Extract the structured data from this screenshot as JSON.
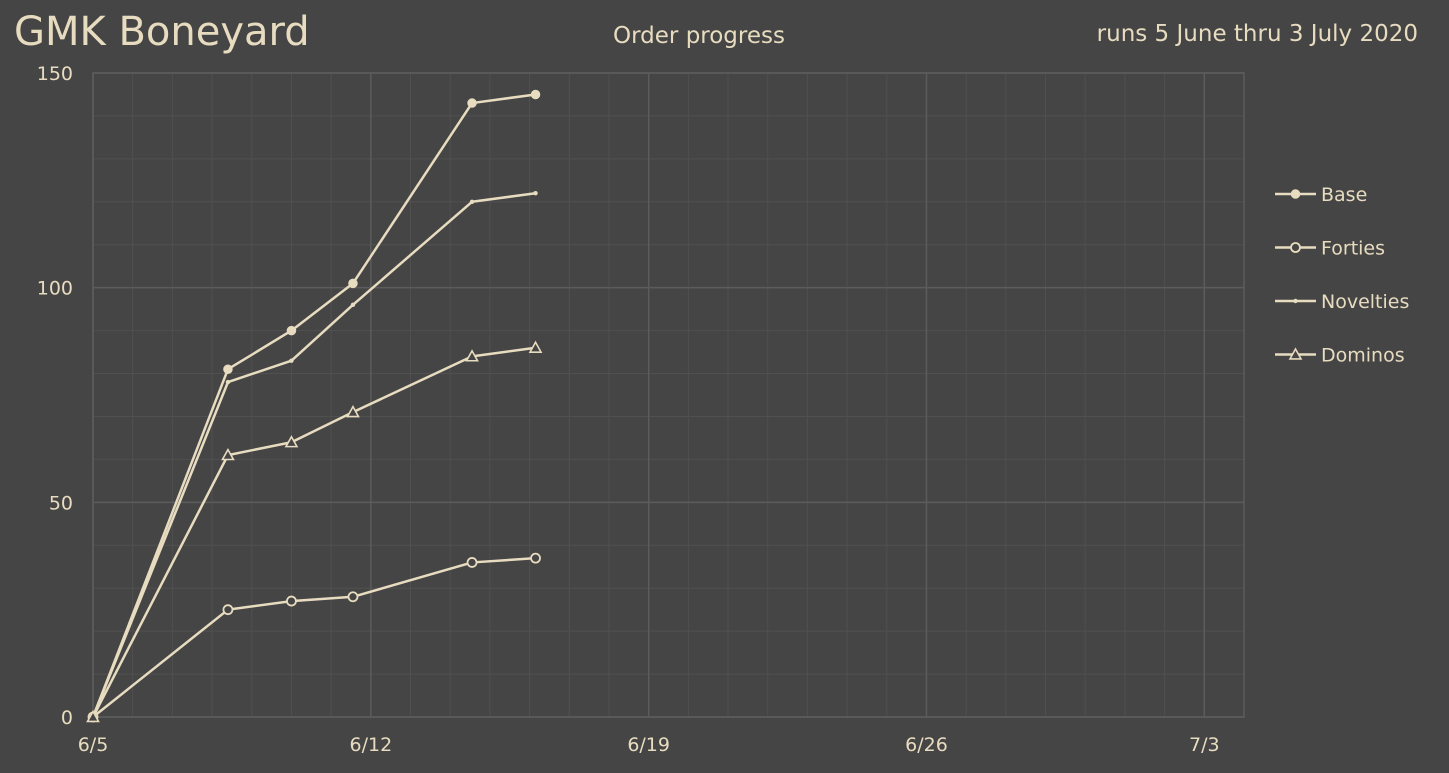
{
  "header": {
    "title": "GMK Boneyard",
    "subtitle": "Order progress",
    "date_range": "runs 5 June thru 3 July 2020"
  },
  "colors": {
    "background": "#454545",
    "line": "#e8dcc0",
    "marker_fill_hollow": "#454545",
    "major_grid": "#5c5c5c",
    "minor_grid": "#505050",
    "text": "#e8dcc0"
  },
  "chart_data": {
    "type": "line",
    "title": "Order progress",
    "x_tick_labels": [
      "6/5",
      "6/12",
      "6/19",
      "6/26",
      "7/3"
    ],
    "x_tick_days": [
      0,
      7,
      14,
      21,
      28
    ],
    "xlim": [
      0,
      29
    ],
    "ylim": [
      0,
      150
    ],
    "y_tick_labels": [
      "0",
      "50",
      "100",
      "150"
    ],
    "y_tick_values": [
      0,
      50,
      100,
      150
    ],
    "grid": true,
    "legend_position": "right",
    "x": [
      0,
      3.4,
      5,
      6.55,
      9.55,
      11.15
    ],
    "series": [
      {
        "name": "Base",
        "marker": "filled-circle",
        "values": [
          0,
          81,
          90,
          101,
          143,
          145
        ]
      },
      {
        "name": "Forties",
        "marker": "hollow-circle",
        "values": [
          0,
          25,
          27,
          28,
          36,
          37
        ]
      },
      {
        "name": "Novelties",
        "marker": "small-dot",
        "values": [
          0,
          78,
          83,
          96,
          120,
          122
        ]
      },
      {
        "name": "Dominos",
        "marker": "hollow-triangle",
        "values": [
          0,
          61,
          64,
          71,
          84,
          86
        ]
      }
    ]
  }
}
